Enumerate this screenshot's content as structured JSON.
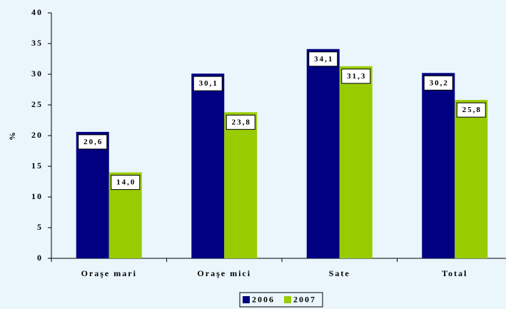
{
  "chart_data": {
    "type": "bar",
    "ylabel": "%",
    "categories": [
      "Oraşe mari",
      "Oraşe mici",
      "Sate",
      "Total"
    ],
    "series": [
      {
        "name": "2006",
        "color": "#000080",
        "values": [
          20.6,
          30.1,
          34.1,
          30.2
        ],
        "value_labels": [
          "20,6",
          "30,1",
          "34,1",
          "30,2"
        ]
      },
      {
        "name": "2007",
        "color": "#99cc00",
        "values": [
          14.0,
          23.8,
          31.3,
          25.8
        ],
        "value_labels": [
          "14,0",
          "23,8",
          "31,3",
          "25,8"
        ]
      }
    ],
    "ylim": [
      0,
      40
    ],
    "yticks": [
      0,
      5,
      10,
      15,
      20,
      25,
      30,
      35,
      40
    ],
    "grid": false,
    "legend": "bottom"
  }
}
